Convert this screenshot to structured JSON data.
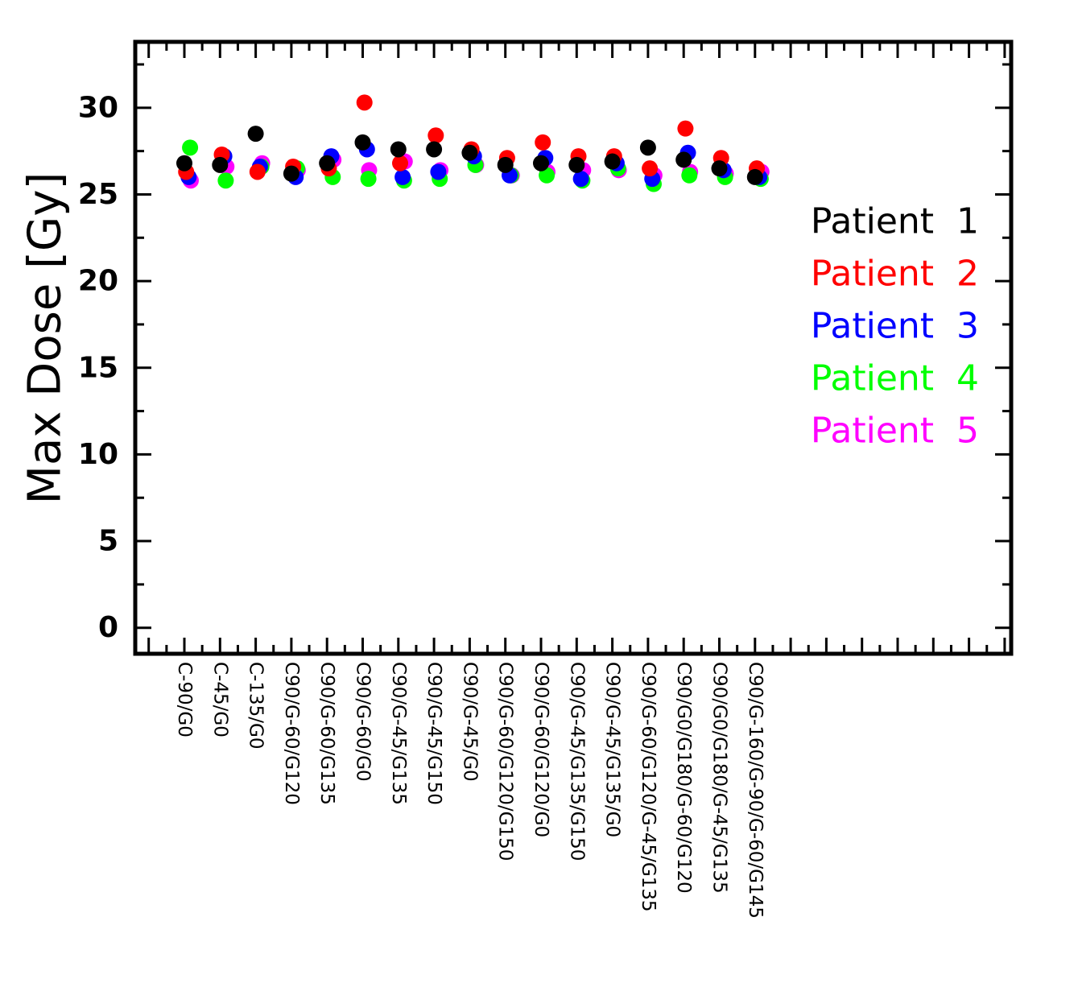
{
  "chart_data": {
    "type": "scatter",
    "title": "",
    "xlabel": "",
    "ylabel": "Max Dose [Gy]",
    "ylim": [
      -1.5,
      33.8
    ],
    "yticks": [
      0,
      5,
      10,
      15,
      20,
      25,
      30
    ],
    "grid": false,
    "legend_position": "right",
    "categories": [
      "C-90/G0",
      "C-45/G0",
      "C-135/G0",
      "C90/G-60/G120",
      "C90/G-60/G135",
      "C90/G-60/G0",
      "C90/G-45/G135",
      "C90/G-45/G150",
      "C90/G-45/G0",
      "C90/G-60/G120/G150",
      "C90/G-60/G120/G0",
      "C90/G-45/G135/G150",
      "C90/G-45/G135/G0",
      "C90/G-60/G120/G-45/G135",
      "C90/G0/G180/G-60/G120",
      "C90/G0/G180/G-45/G135",
      "C90/G-160/G-90/G-60/G145"
    ],
    "series": [
      {
        "name": "Patient 5",
        "color": "#ff00ff",
        "offset": 0.18,
        "values": [
          25.8,
          26.6,
          26.8,
          26.4,
          27.0,
          26.4,
          26.9,
          26.4,
          26.7,
          26.1,
          26.3,
          26.4,
          26.4,
          26.1,
          26.3,
          26.2,
          26.3
        ]
      },
      {
        "name": "Patient 4",
        "color": "#00ff00",
        "offset": 0.16,
        "values": [
          27.7,
          25.8,
          26.6,
          26.5,
          26.0,
          25.9,
          25.8,
          25.9,
          26.7,
          26.1,
          26.1,
          25.8,
          26.5,
          25.6,
          26.1,
          26.0,
          25.9
        ]
      },
      {
        "name": "Patient 3",
        "color": "#0000ff",
        "offset": 0.12,
        "values": [
          26.0,
          27.2,
          26.6,
          26.0,
          27.2,
          27.6,
          26.0,
          26.3,
          27.2,
          26.1,
          27.1,
          25.9,
          26.8,
          25.9,
          27.4,
          26.4,
          26.0
        ]
      },
      {
        "name": "Patient 2",
        "color": "#ff0000",
        "offset": 0.05,
        "values": [
          26.3,
          27.3,
          26.3,
          26.6,
          26.5,
          30.3,
          26.8,
          28.4,
          27.6,
          27.1,
          28.0,
          27.2,
          27.2,
          26.5,
          28.8,
          27.1,
          26.5
        ]
      },
      {
        "name": "Patient 1",
        "color": "#000000",
        "offset": 0.0,
        "values": [
          26.8,
          26.7,
          28.5,
          26.2,
          26.8,
          28.0,
          27.6,
          27.6,
          27.4,
          26.7,
          26.8,
          26.7,
          26.9,
          27.7,
          27.0,
          26.5,
          26.0
        ]
      }
    ],
    "legend": [
      {
        "label": "Patient 1",
        "color": "#000000"
      },
      {
        "label": "Patient 2",
        "color": "#ff0000"
      },
      {
        "label": "Patient 3",
        "color": "#0000ff"
      },
      {
        "label": "Patient 4",
        "color": "#00ff00"
      },
      {
        "label": "Patient 5",
        "color": "#ff00ff"
      }
    ]
  }
}
